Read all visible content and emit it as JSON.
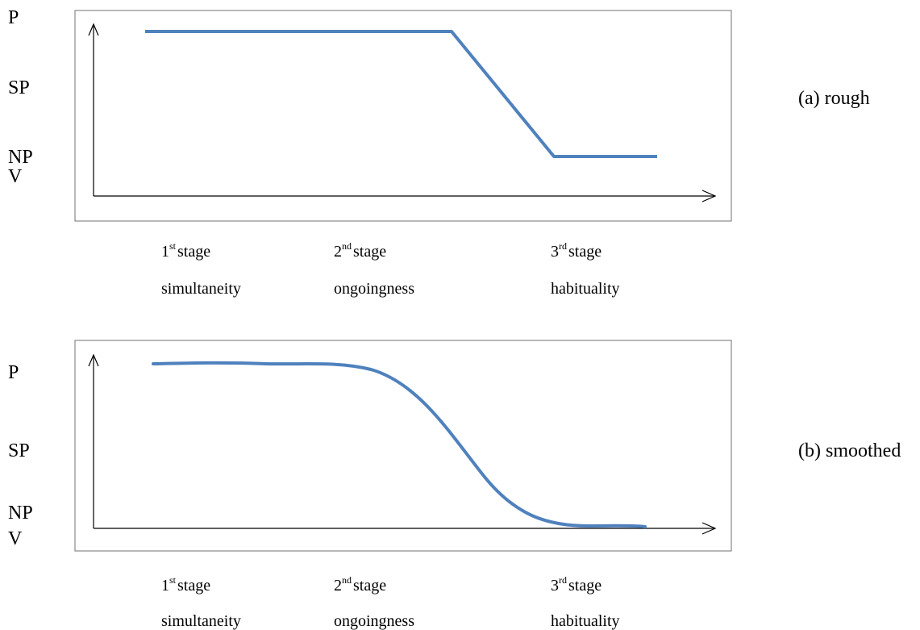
{
  "panels": [
    {
      "id": "a",
      "caption": "(a) rough",
      "y_levels": [
        "P",
        "SP",
        "NP",
        "V"
      ],
      "stages": [
        {
          "ordinal": "1",
          "suffix": "st",
          "word": "stage",
          "name": "simultaneity"
        },
        {
          "ordinal": "2",
          "suffix": "nd",
          "word": "stage",
          "name": "ongoingness"
        },
        {
          "ordinal": "3",
          "suffix": "rd",
          "word": "stage",
          "name": "habituality"
        }
      ]
    },
    {
      "id": "b",
      "caption": "(b) smoothed",
      "y_levels": [
        "P",
        "SP",
        "NP",
        "V"
      ],
      "stages": [
        {
          "ordinal": "1",
          "suffix": "st",
          "word": "stage",
          "name": "simultaneity"
        },
        {
          "ordinal": "2",
          "suffix": "nd",
          "word": "stage",
          "name": "ongoingness"
        },
        {
          "ordinal": "3",
          "suffix": "rd",
          "word": "stage",
          "name": "habituality"
        }
      ]
    }
  ],
  "colors": {
    "curve": "#4f81bd",
    "frame": "#888888",
    "axis": "#000000"
  }
}
